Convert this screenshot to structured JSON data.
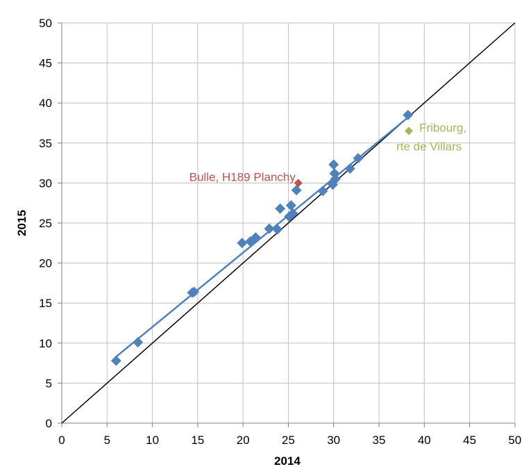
{
  "chart_data": {
    "type": "scatter",
    "title": "",
    "xlabel": "2014",
    "ylabel": "2015",
    "xlim": [
      0,
      50
    ],
    "ylim": [
      0,
      50
    ],
    "xticks": [
      "0",
      "5",
      "10",
      "15",
      "20",
      "25",
      "30",
      "35",
      "40",
      "45",
      "50"
    ],
    "yticks": [
      "0",
      "5",
      "10",
      "15",
      "20",
      "25",
      "30",
      "35",
      "40",
      "45",
      "50"
    ],
    "grid": true,
    "legend": "none",
    "colors": {
      "main_series": "#4f81bd",
      "highlight_red": "#c0504d",
      "highlight_green": "#9bbb59",
      "reference_line": "#000000",
      "grid": "#bfbfbf"
    },
    "series": [
      {
        "points": [
          [
            6.0,
            7.8
          ],
          [
            8.4,
            10.1
          ],
          [
            14.4,
            16.3
          ],
          [
            14.6,
            16.4
          ],
          [
            19.9,
            22.5
          ],
          [
            20.8,
            22.7
          ],
          [
            21.4,
            23.2
          ],
          [
            22.9,
            24.3
          ],
          [
            23.8,
            24.2
          ],
          [
            24.1,
            26.8
          ],
          [
            25.1,
            25.8
          ],
          [
            25.3,
            27.2
          ],
          [
            25.5,
            26.2
          ],
          [
            25.9,
            29.1
          ],
          [
            28.8,
            29.0
          ],
          [
            29.9,
            29.8
          ],
          [
            30.0,
            32.3
          ],
          [
            30.1,
            31.2
          ],
          [
            30.2,
            30.5
          ],
          [
            31.8,
            31.8
          ],
          [
            32.7,
            33.1
          ],
          [
            38.2,
            38.5
          ]
        ],
        "trendline": {
          "x": [
            6.0,
            38.2
          ],
          "y": [
            8.3,
            38.2
          ]
        }
      }
    ],
    "highlights": [
      {
        "label": "Bulle, H189 Planchy",
        "x": 26.1,
        "y": 30.0,
        "color": "#c0504d"
      },
      {
        "label_lines": [
          "Fribourg,",
          "rte de Villars"
        ],
        "x": 38.3,
        "y": 36.5,
        "color": "#9bbb59"
      }
    ],
    "reference_line": {
      "x": [
        0,
        50
      ],
      "y": [
        0,
        50
      ]
    }
  }
}
